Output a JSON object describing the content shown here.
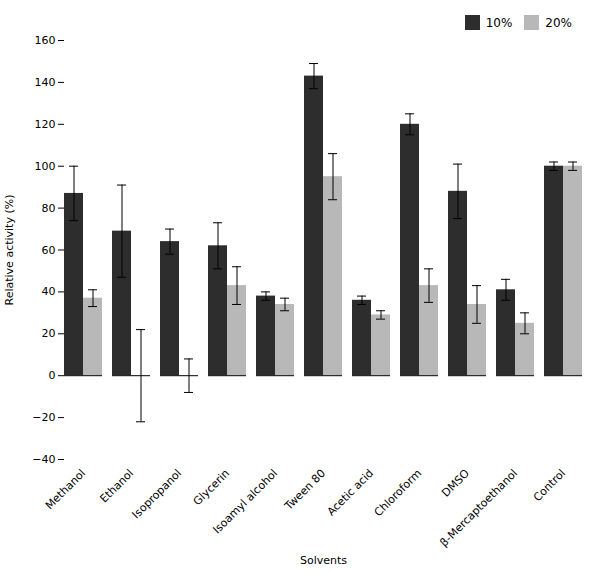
{
  "chart_data": {
    "type": "bar",
    "xlabel": "Solvents",
    "ylabel": "Relative activity (%)",
    "categories": [
      "Methanol",
      "Ethanol",
      "Isopropanol",
      "Glycerin",
      "Isoamyl alcohol",
      "Tween 80",
      "Acetic acid",
      "Chloroform",
      "DMSO",
      "β-Mercaptoethanol",
      "Control"
    ],
    "series": [
      {
        "name": "10%",
        "color": "#2d2d2d",
        "values": [
          87,
          69,
          64,
          62,
          38,
          143,
          36,
          120,
          88,
          41,
          100
        ],
        "errors": [
          13,
          22,
          6,
          11,
          2,
          6,
          2,
          5,
          13,
          5,
          2
        ]
      },
      {
        "name": "20%",
        "color": "#b8b8b8",
        "values": [
          37,
          0,
          0,
          43,
          34,
          95,
          29,
          43,
          34,
          25,
          100
        ],
        "errors": [
          4,
          22,
          8,
          9,
          3,
          11,
          2,
          8,
          9,
          5,
          2
        ]
      }
    ],
    "ylim": [
      -40,
      160
    ],
    "yticks": [
      -40,
      -20,
      0,
      20,
      40,
      60,
      80,
      100,
      120,
      140,
      160
    ],
    "legend": "upper right"
  }
}
